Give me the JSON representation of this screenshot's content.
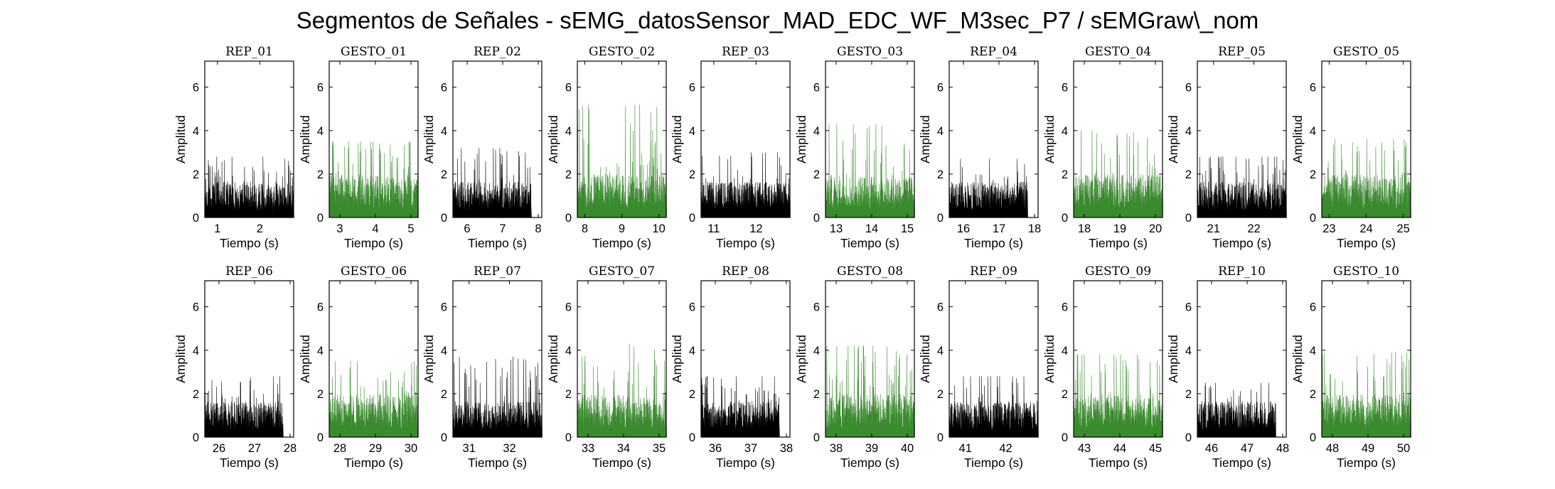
{
  "figure": {
    "title": "Segmentos de Señales - sEMG_datosSensor_MAD_EDC_WF_M3sec_P7 / sEMGraw\\_nom"
  },
  "colors": {
    "rep": "#000000",
    "gesto": "#3a8a2e",
    "axis": "#000000"
  },
  "chart_data": [
    {
      "type": "area",
      "title": "REP_01",
      "xlabel": "Tiempo (s)",
      "ylabel": "Amplitud",
      "x_range": [
        0.7,
        2.8
      ],
      "ylim": [
        0,
        7.2
      ],
      "x_ticks": [
        1,
        2
      ],
      "y_ticks": [
        0,
        2,
        4,
        6
      ],
      "series": [
        {
          "name": "REP_01",
          "color": "#000000",
          "x_span": [
            0.7,
            2.8
          ],
          "baseline_amplitude": 1.0,
          "peak_amplitude": 2.8
        }
      ]
    },
    {
      "type": "area",
      "title": "GESTO_01",
      "xlabel": "Tiempo (s)",
      "ylabel": "Amplitud",
      "x_range": [
        2.7,
        5.2
      ],
      "ylim": [
        0,
        7.2
      ],
      "x_ticks": [
        3,
        4,
        5
      ],
      "y_ticks": [
        0,
        2,
        4,
        6
      ],
      "series": [
        {
          "name": "GESTO_01",
          "color": "#3a8a2e",
          "x_span": [
            2.7,
            5.2
          ],
          "baseline_amplitude": 1.2,
          "peak_amplitude": 3.5
        }
      ]
    },
    {
      "type": "area",
      "title": "REP_02",
      "xlabel": "Tiempo (s)",
      "ylabel": "Amplitud",
      "x_range": [
        5.6,
        8.1
      ],
      "ylim": [
        0,
        7.2
      ],
      "x_ticks": [
        6,
        7,
        8
      ],
      "y_ticks": [
        0,
        2,
        4,
        6
      ],
      "series": [
        {
          "name": "REP_02",
          "color": "#000000",
          "x_span": [
            5.6,
            7.8
          ],
          "baseline_amplitude": 1.0,
          "peak_amplitude": 3.2
        }
      ]
    },
    {
      "type": "area",
      "title": "GESTO_02",
      "xlabel": "Tiempo (s)",
      "ylabel": "Amplitud",
      "x_range": [
        7.8,
        10.2
      ],
      "ylim": [
        0,
        7.2
      ],
      "x_ticks": [
        8,
        9,
        10
      ],
      "y_ticks": [
        0,
        2,
        4,
        6
      ],
      "series": [
        {
          "name": "GESTO_02",
          "color": "#3a8a2e",
          "x_span": [
            7.8,
            10.2
          ],
          "baseline_amplitude": 1.2,
          "peak_amplitude": 5.2
        }
      ]
    },
    {
      "type": "area",
      "title": "REP_03",
      "xlabel": "Tiempo (s)",
      "ylabel": "Amplitud",
      "x_range": [
        10.7,
        12.8
      ],
      "ylim": [
        0,
        7.2
      ],
      "x_ticks": [
        11,
        12
      ],
      "y_ticks": [
        0,
        2,
        4,
        6
      ],
      "series": [
        {
          "name": "REP_03",
          "color": "#000000",
          "x_span": [
            10.7,
            12.8
          ],
          "baseline_amplitude": 1.0,
          "peak_amplitude": 3.0
        }
      ]
    },
    {
      "type": "area",
      "title": "GESTO_03",
      "xlabel": "Tiempo (s)",
      "ylabel": "Amplitud",
      "x_range": [
        12.7,
        15.2
      ],
      "ylim": [
        0,
        7.2
      ],
      "x_ticks": [
        13,
        14,
        15
      ],
      "y_ticks": [
        0,
        2,
        4,
        6
      ],
      "series": [
        {
          "name": "GESTO_03",
          "color": "#3a8a2e",
          "x_span": [
            12.7,
            15.2
          ],
          "baseline_amplitude": 1.2,
          "peak_amplitude": 4.3
        }
      ]
    },
    {
      "type": "area",
      "title": "REP_04",
      "xlabel": "Tiempo (s)",
      "ylabel": "Amplitud",
      "x_range": [
        15.6,
        18.1
      ],
      "ylim": [
        0,
        7.2
      ],
      "x_ticks": [
        16,
        17,
        18
      ],
      "y_ticks": [
        0,
        2,
        4,
        6
      ],
      "series": [
        {
          "name": "REP_04",
          "color": "#000000",
          "x_span": [
            15.6,
            17.8
          ],
          "baseline_amplitude": 1.0,
          "peak_amplitude": 2.7
        }
      ]
    },
    {
      "type": "area",
      "title": "GESTO_04",
      "xlabel": "Tiempo (s)",
      "ylabel": "Amplitud",
      "x_range": [
        17.7,
        20.2
      ],
      "ylim": [
        0,
        7.2
      ],
      "x_ticks": [
        18,
        19,
        20
      ],
      "y_ticks": [
        0,
        2,
        4,
        6
      ],
      "series": [
        {
          "name": "GESTO_04",
          "color": "#3a8a2e",
          "x_span": [
            17.7,
            20.2
          ],
          "baseline_amplitude": 1.2,
          "peak_amplitude": 4.0
        }
      ]
    },
    {
      "type": "area",
      "title": "REP_05",
      "xlabel": "Tiempo (s)",
      "ylabel": "Amplitud",
      "x_range": [
        20.6,
        22.8
      ],
      "ylim": [
        0,
        7.2
      ],
      "x_ticks": [
        21,
        22
      ],
      "y_ticks": [
        0,
        2,
        4,
        6
      ],
      "series": [
        {
          "name": "REP_05",
          "color": "#000000",
          "x_span": [
            20.6,
            22.8
          ],
          "baseline_amplitude": 1.0,
          "peak_amplitude": 2.8
        }
      ]
    },
    {
      "type": "area",
      "title": "GESTO_05",
      "xlabel": "Tiempo (s)",
      "ylabel": "Amplitud",
      "x_range": [
        22.8,
        25.2
      ],
      "ylim": [
        0,
        7.2
      ],
      "x_ticks": [
        23,
        24,
        25
      ],
      "y_ticks": [
        0,
        2,
        4,
        6
      ],
      "series": [
        {
          "name": "GESTO_05",
          "color": "#3a8a2e",
          "x_span": [
            22.8,
            25.2
          ],
          "baseline_amplitude": 1.2,
          "peak_amplitude": 3.6
        }
      ]
    },
    {
      "type": "area",
      "title": "REP_06",
      "xlabel": "Tiempo (s)",
      "ylabel": "Amplitud",
      "x_range": [
        25.6,
        28.1
      ],
      "ylim": [
        0,
        7.2
      ],
      "x_ticks": [
        26,
        27,
        28
      ],
      "y_ticks": [
        0,
        2,
        4,
        6
      ],
      "series": [
        {
          "name": "REP_06",
          "color": "#000000",
          "x_span": [
            25.6,
            27.8
          ],
          "baseline_amplitude": 1.0,
          "peak_amplitude": 2.8
        }
      ]
    },
    {
      "type": "area",
      "title": "GESTO_06",
      "xlabel": "Tiempo (s)",
      "ylabel": "Amplitud",
      "x_range": [
        27.7,
        30.2
      ],
      "ylim": [
        0,
        7.2
      ],
      "x_ticks": [
        28,
        29,
        30
      ],
      "y_ticks": [
        0,
        2,
        4,
        6
      ],
      "series": [
        {
          "name": "GESTO_06",
          "color": "#3a8a2e",
          "x_span": [
            27.7,
            30.2
          ],
          "baseline_amplitude": 1.2,
          "peak_amplitude": 3.5
        }
      ]
    },
    {
      "type": "area",
      "title": "REP_07",
      "xlabel": "Tiempo (s)",
      "ylabel": "Amplitud",
      "x_range": [
        30.6,
        32.8
      ],
      "ylim": [
        0,
        7.2
      ],
      "x_ticks": [
        31,
        32
      ],
      "y_ticks": [
        0,
        2,
        4,
        6
      ],
      "series": [
        {
          "name": "REP_07",
          "color": "#000000",
          "x_span": [
            30.6,
            32.8
          ],
          "baseline_amplitude": 1.0,
          "peak_amplitude": 3.7
        }
      ]
    },
    {
      "type": "area",
      "title": "GESTO_07",
      "xlabel": "Tiempo (s)",
      "ylabel": "Amplitud",
      "x_range": [
        32.7,
        35.2
      ],
      "ylim": [
        0,
        7.2
      ],
      "x_ticks": [
        33,
        34,
        35
      ],
      "y_ticks": [
        0,
        2,
        4,
        6
      ],
      "series": [
        {
          "name": "GESTO_07",
          "color": "#3a8a2e",
          "x_span": [
            32.7,
            35.2
          ],
          "baseline_amplitude": 1.2,
          "peak_amplitude": 4.3
        }
      ]
    },
    {
      "type": "area",
      "title": "REP_08",
      "xlabel": "Tiempo (s)",
      "ylabel": "Amplitud",
      "x_range": [
        35.6,
        38.1
      ],
      "ylim": [
        0,
        7.2
      ],
      "x_ticks": [
        36,
        37,
        38
      ],
      "y_ticks": [
        0,
        2,
        4,
        6
      ],
      "series": [
        {
          "name": "REP_08",
          "color": "#000000",
          "x_span": [
            35.6,
            37.8
          ],
          "baseline_amplitude": 1.0,
          "peak_amplitude": 2.8
        }
      ]
    },
    {
      "type": "area",
      "title": "GESTO_08",
      "xlabel": "Tiempo (s)",
      "ylabel": "Amplitud",
      "x_range": [
        37.7,
        40.2
      ],
      "ylim": [
        0,
        7.2
      ],
      "x_ticks": [
        38,
        39,
        40
      ],
      "y_ticks": [
        0,
        2,
        4,
        6
      ],
      "series": [
        {
          "name": "GESTO_08",
          "color": "#3a8a2e",
          "x_span": [
            37.7,
            40.2
          ],
          "baseline_amplitude": 1.2,
          "peak_amplitude": 4.2
        }
      ]
    },
    {
      "type": "area",
      "title": "REP_09",
      "xlabel": "Tiempo (s)",
      "ylabel": "Amplitud",
      "x_range": [
        40.6,
        42.8
      ],
      "ylim": [
        0,
        7.2
      ],
      "x_ticks": [
        41,
        42
      ],
      "y_ticks": [
        0,
        2,
        4,
        6
      ],
      "series": [
        {
          "name": "REP_09",
          "color": "#000000",
          "x_span": [
            40.6,
            42.8
          ],
          "baseline_amplitude": 1.0,
          "peak_amplitude": 2.8
        }
      ]
    },
    {
      "type": "area",
      "title": "GESTO_09",
      "xlabel": "Tiempo (s)",
      "ylabel": "Amplitud",
      "x_range": [
        42.7,
        45.2
      ],
      "ylim": [
        0,
        7.2
      ],
      "x_ticks": [
        43,
        44,
        45
      ],
      "y_ticks": [
        0,
        2,
        4,
        6
      ],
      "series": [
        {
          "name": "GESTO_09",
          "color": "#3a8a2e",
          "x_span": [
            42.7,
            45.2
          ],
          "baseline_amplitude": 1.2,
          "peak_amplitude": 3.8
        }
      ]
    },
    {
      "type": "area",
      "title": "REP_10",
      "xlabel": "Tiempo (s)",
      "ylabel": "Amplitud",
      "x_range": [
        45.6,
        48.1
      ],
      "ylim": [
        0,
        7.2
      ],
      "x_ticks": [
        46,
        47,
        48
      ],
      "y_ticks": [
        0,
        2,
        4,
        6
      ],
      "series": [
        {
          "name": "REP_10",
          "color": "#000000",
          "x_span": [
            45.6,
            47.8
          ],
          "baseline_amplitude": 1.0,
          "peak_amplitude": 2.5
        }
      ]
    },
    {
      "type": "area",
      "title": "GESTO_10",
      "xlabel": "Tiempo (s)",
      "ylabel": "Amplitud",
      "x_range": [
        47.7,
        50.2
      ],
      "ylim": [
        0,
        7.2
      ],
      "x_ticks": [
        48,
        49,
        50
      ],
      "y_ticks": [
        0,
        2,
        4,
        6
      ],
      "series": [
        {
          "name": "GESTO_10",
          "color": "#3a8a2e",
          "x_span": [
            47.7,
            50.2
          ],
          "baseline_amplitude": 1.2,
          "peak_amplitude": 3.9
        }
      ]
    }
  ]
}
